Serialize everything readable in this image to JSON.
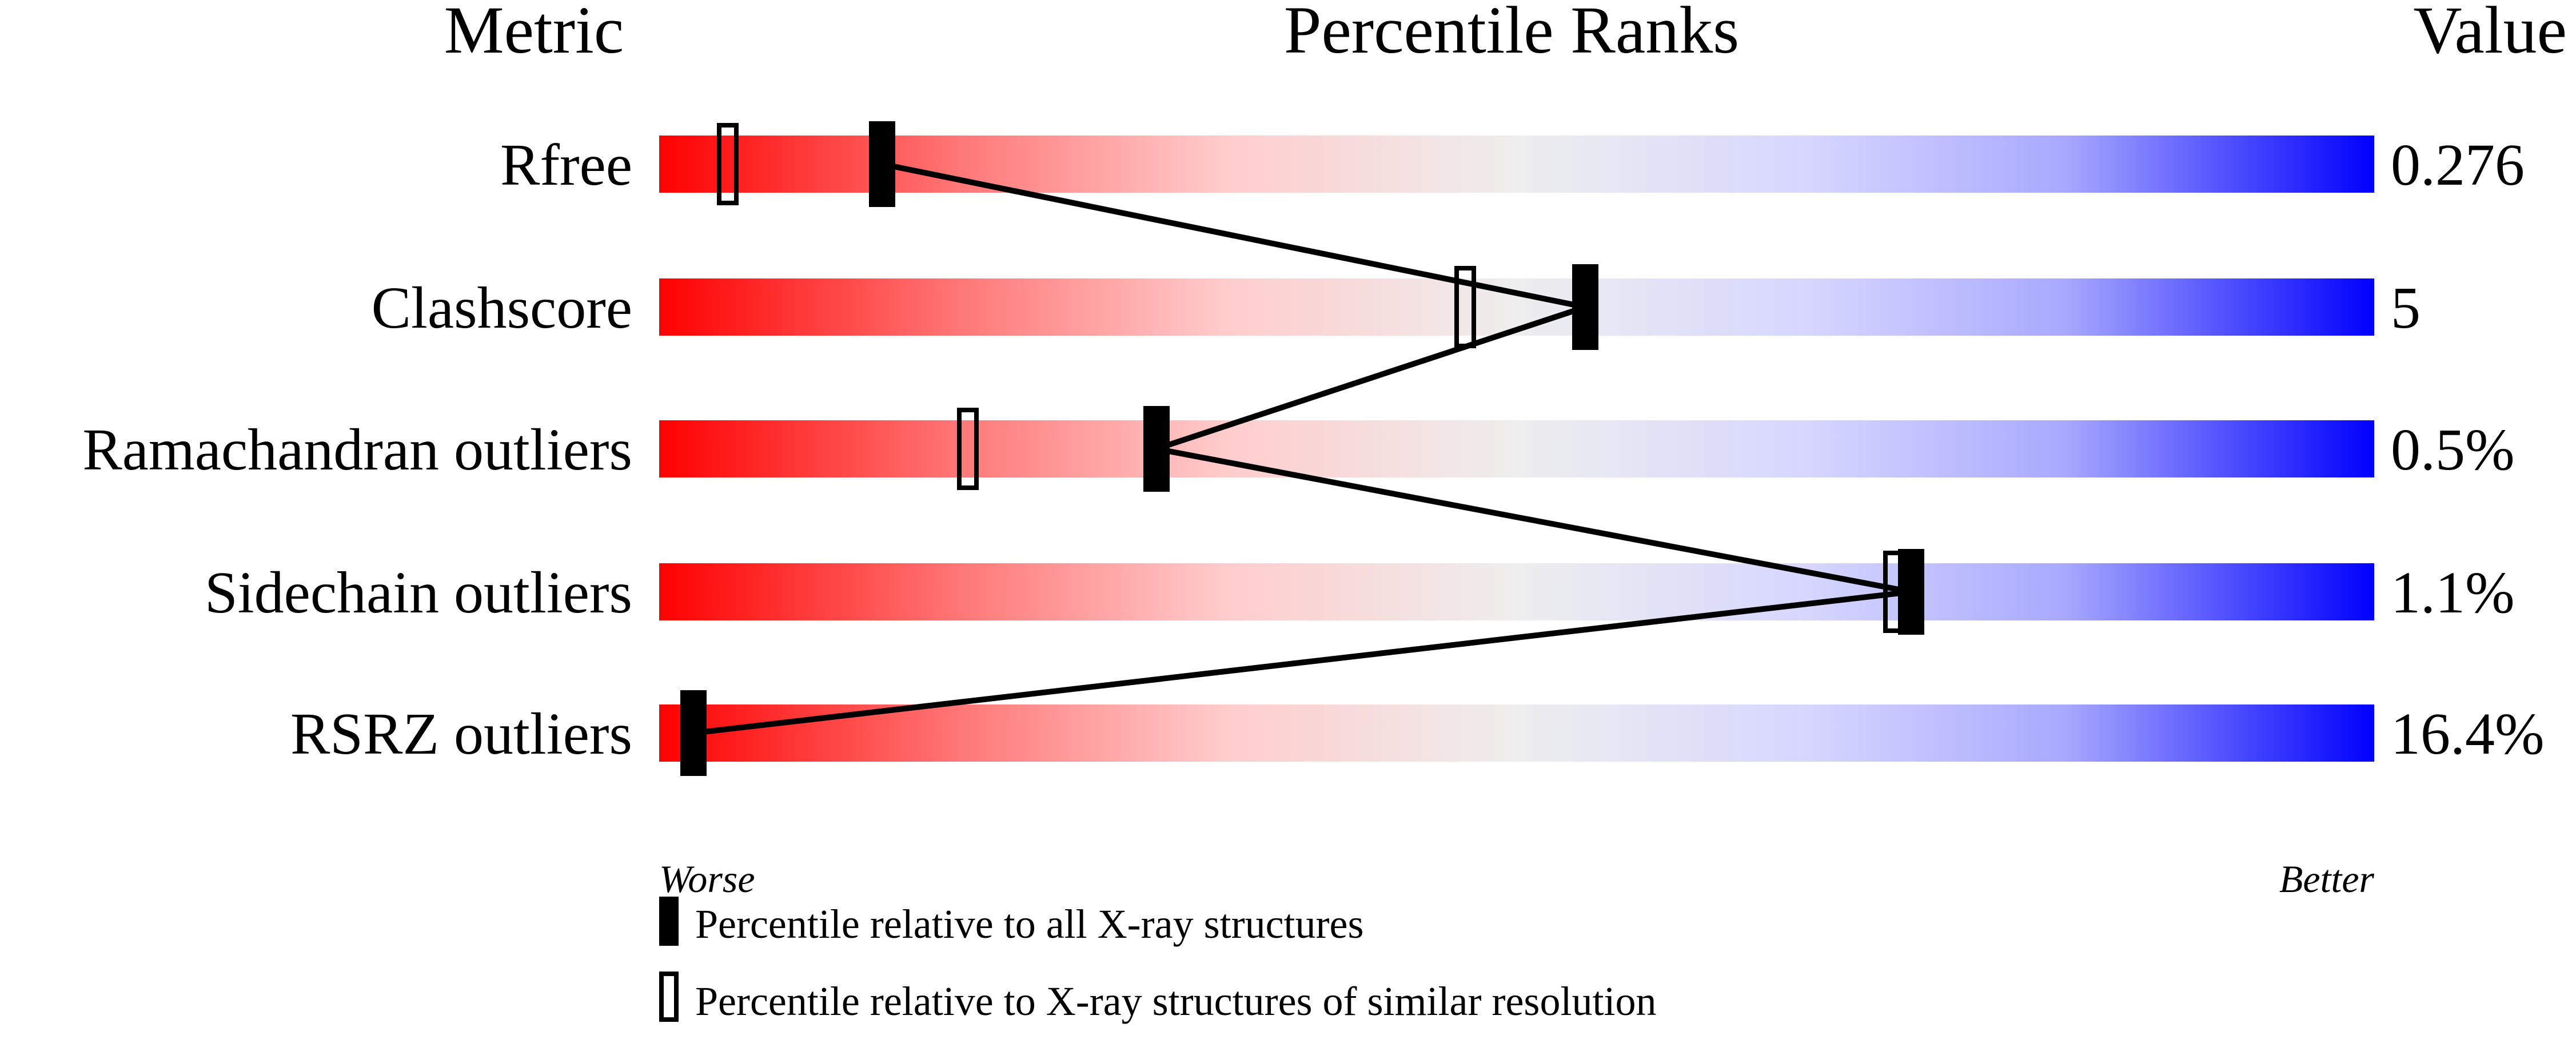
{
  "chart_data": {
    "type": "percentile-slider",
    "headers": {
      "metric": "Metric",
      "ranks": "Percentile Ranks",
      "value": "Value"
    },
    "xlim": [
      0,
      100
    ],
    "scale_labels": {
      "left": "Worse",
      "right": "Better"
    },
    "gradient_colors": [
      "#ff0000",
      "#eeeeee",
      "#0000ff"
    ],
    "rows": [
      {
        "metric": "Rfree",
        "value": "0.276",
        "percentile_all": 13,
        "percentile_similar": 4
      },
      {
        "metric": "Clashscore",
        "value": "5",
        "percentile_all": 54,
        "percentile_similar": 47
      },
      {
        "metric": "Ramachandran outliers",
        "value": "0.5%",
        "percentile_all": 29,
        "percentile_similar": 18
      },
      {
        "metric": "Sidechain outliers",
        "value": "1.1%",
        "percentile_all": 73,
        "percentile_similar": 72
      },
      {
        "metric": "RSRZ outliers",
        "value": "16.4%",
        "percentile_all": 2,
        "percentile_similar": null
      }
    ],
    "legend": [
      {
        "marker": "filled",
        "label": "Percentile relative to all X-ray structures"
      },
      {
        "marker": "open",
        "label": "Percentile relative to X-ray structures of similar resolution"
      }
    ]
  }
}
